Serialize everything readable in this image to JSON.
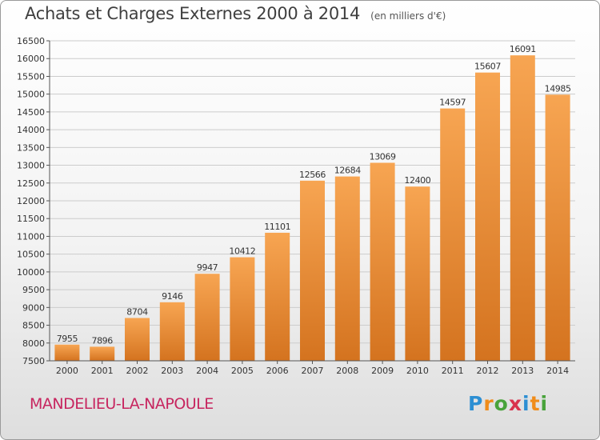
{
  "header": {
    "title": "Achats et Charges Externes 2000 à 2014",
    "subtitle": "(en milliers d'€)"
  },
  "footer": {
    "commune": "MANDELIEU-LA-NAPOULE",
    "logo_text": "Proxiti"
  },
  "colors": {
    "bar_light": "#f7a552",
    "bar_dark": "#d4731f",
    "commune_text": "#c7255f",
    "grid": "#cccccc"
  },
  "chart_data": {
    "type": "bar",
    "title": "Achats et Charges Externes 2000 à 2014",
    "subtitle": "(en milliers d'€)",
    "xlabel": "",
    "ylabel": "",
    "categories": [
      "2000",
      "2001",
      "2002",
      "2003",
      "2004",
      "2005",
      "2006",
      "2007",
      "2008",
      "2009",
      "2010",
      "2011",
      "2012",
      "2013",
      "2014"
    ],
    "values": [
      7955,
      7896,
      8704,
      9146,
      9947,
      10412,
      11101,
      12566,
      12684,
      13069,
      12400,
      14597,
      15607,
      16091,
      14985
    ],
    "ylim": [
      7500,
      16500
    ],
    "yticks": [
      7500,
      8000,
      8500,
      9000,
      9500,
      10000,
      10500,
      11000,
      11500,
      12000,
      12500,
      13000,
      13500,
      14000,
      14500,
      15000,
      15500,
      16000,
      16500
    ],
    "grid": true,
    "legend": "none"
  }
}
